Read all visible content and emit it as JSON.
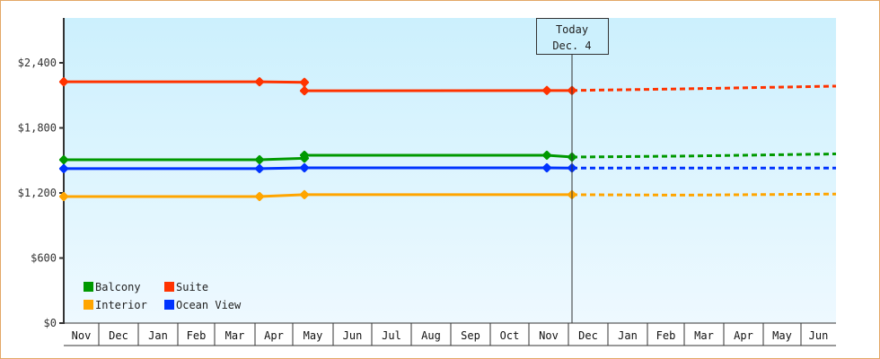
{
  "chart_data": {
    "type": "line",
    "title": "",
    "xlabel": "",
    "ylabel": "",
    "ylim": [
      0,
      2700
    ],
    "yticks": [
      {
        "value": 0,
        "label": "$0"
      },
      {
        "value": 600,
        "label": "$600"
      },
      {
        "value": 1200,
        "label": "$1,200"
      },
      {
        "value": 1800,
        "label": "$1,800"
      },
      {
        "value": 2400,
        "label": "$2,400"
      }
    ],
    "grid": false,
    "legend_position": "lower-left inside",
    "categories": [
      "Nov",
      "Dec",
      "Jan",
      "Feb",
      "Mar",
      "Apr",
      "May",
      "Jun",
      "Jul",
      "Aug",
      "Sep",
      "Oct",
      "Nov",
      "Dec",
      "Jan",
      "Feb",
      "Mar",
      "Apr",
      "May",
      "Jun"
    ],
    "today_marker": {
      "line1": "Today",
      "line2": "Dec. 4"
    },
    "series": [
      {
        "name": "Suite",
        "color": "#ff3300",
        "history": [
          {
            "x": 0.0,
            "y": 2225
          },
          {
            "x": 5.0,
            "y": 2225
          },
          {
            "x": 6.0,
            "y": 2220
          },
          {
            "x": 6.0,
            "y": 2142
          },
          {
            "x": 12.0,
            "y": 2145
          },
          {
            "x": 13.0,
            "y": 2145
          }
        ],
        "forecast": [
          {
            "x": 13.0,
            "y": 2145
          },
          {
            "x": 16.0,
            "y": 2160
          },
          {
            "x": 20.0,
            "y": 2185
          }
        ]
      },
      {
        "name": "Balcony",
        "color": "#009900",
        "history": [
          {
            "x": 0.0,
            "y": 1506
          },
          {
            "x": 5.0,
            "y": 1506
          },
          {
            "x": 6.0,
            "y": 1520
          },
          {
            "x": 6.0,
            "y": 1548
          },
          {
            "x": 12.0,
            "y": 1548
          },
          {
            "x": 13.0,
            "y": 1531
          }
        ],
        "forecast": [
          {
            "x": 13.0,
            "y": 1531
          },
          {
            "x": 16.0,
            "y": 1540
          },
          {
            "x": 20.0,
            "y": 1560
          }
        ]
      },
      {
        "name": "Ocean View",
        "color": "#0033ff",
        "history": [
          {
            "x": 0.0,
            "y": 1424
          },
          {
            "x": 5.0,
            "y": 1424
          },
          {
            "x": 6.0,
            "y": 1432
          },
          {
            "x": 12.0,
            "y": 1432
          },
          {
            "x": 13.0,
            "y": 1430
          }
        ],
        "forecast": [
          {
            "x": 13.0,
            "y": 1430
          },
          {
            "x": 20.0,
            "y": 1430
          }
        ]
      },
      {
        "name": "Interior",
        "color": "#ffa500",
        "history": [
          {
            "x": 0.0,
            "y": 1167
          },
          {
            "x": 5.0,
            "y": 1167
          },
          {
            "x": 6.0,
            "y": 1184
          },
          {
            "x": 13.0,
            "y": 1184
          }
        ],
        "forecast": [
          {
            "x": 13.0,
            "y": 1184
          },
          {
            "x": 16.0,
            "y": 1180
          },
          {
            "x": 20.0,
            "y": 1190
          }
        ]
      }
    ],
    "legend": [
      {
        "name": "Balcony",
        "color": "#009900"
      },
      {
        "name": "Suite",
        "color": "#ff3300"
      },
      {
        "name": "Interior",
        "color": "#ffa500"
      },
      {
        "name": "Ocean View",
        "color": "#0033ff"
      }
    ]
  }
}
